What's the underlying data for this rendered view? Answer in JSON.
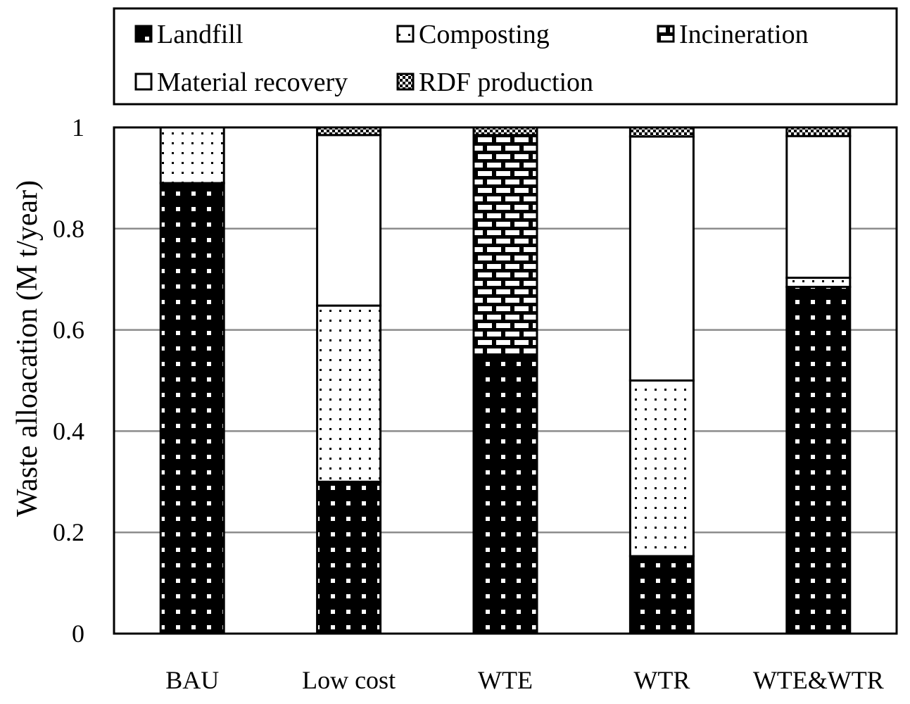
{
  "chart_data": {
    "type": "bar",
    "stacked": true,
    "categories": [
      "BAU",
      "Low cost",
      "WTE",
      "WTR",
      "WTE&WTR"
    ],
    "series": [
      {
        "name": "Landfill",
        "pattern": "landfill",
        "values": [
          0.89,
          0.3,
          0.545,
          0.153,
          0.685
        ]
      },
      {
        "name": "Composting",
        "pattern": "composting",
        "values": [
          0.11,
          0.348,
          0.0,
          0.347,
          0.018
        ]
      },
      {
        "name": "Incineration",
        "pattern": "incineration",
        "values": [
          0.0,
          0.0,
          0.44,
          0.0,
          0.0
        ]
      },
      {
        "name": "Material recovery",
        "pattern": "material",
        "values": [
          0.0,
          0.337,
          0.0,
          0.482,
          0.28
        ]
      },
      {
        "name": "RDF production",
        "pattern": "rdf",
        "values": [
          0.0,
          0.015,
          0.015,
          0.018,
          0.017
        ]
      }
    ],
    "title": "",
    "xlabel": "",
    "ylabel": "Waste alloacation (M t/year)",
    "ylim": [
      0,
      1
    ],
    "yticks": [
      0,
      0.2,
      0.4,
      0.6,
      0.8,
      1
    ],
    "ytick_labels": [
      "0",
      "0.2",
      "0.4",
      "0.6",
      "0.8",
      "1"
    ],
    "grid": true,
    "legend_position": "top"
  }
}
